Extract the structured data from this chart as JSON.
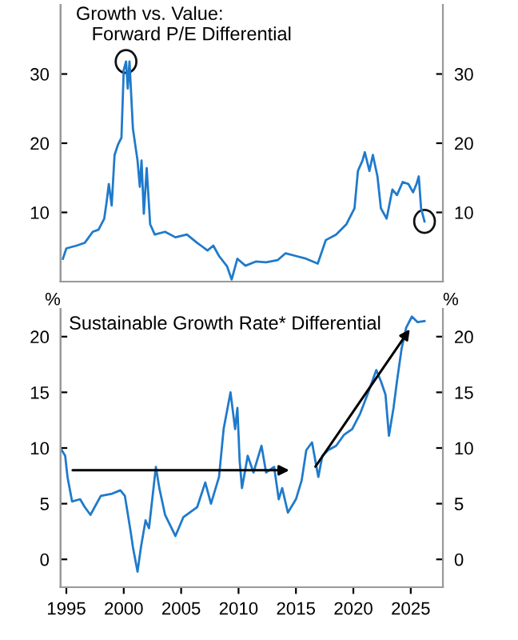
{
  "chart_data": [
    {
      "type": "line",
      "title": "Growth vs. Value:\n   Forward P/E Differential",
      "xlim": [
        1994.5,
        2027.8
      ],
      "ylim": [
        0,
        40
      ],
      "yticks": [
        10,
        20,
        30
      ],
      "y2lim": [
        0,
        40
      ],
      "y2ticks": [
        10,
        20,
        30
      ],
      "tick_labels": "y",
      "grid": false,
      "legend": false,
      "series": [
        {
          "color": "#1f7acb",
          "x": [
            1994.7,
            1995.0,
            1995.9,
            1996.6,
            1997.3,
            1997.8,
            1998.3,
            1998.5,
            1998.7,
            1998.95,
            1999.2,
            1999.5,
            1999.8,
            2000.0,
            2000.2,
            2000.35,
            2000.5,
            2000.8,
            2001.2,
            2001.4,
            2001.55,
            2001.75,
            2002.0,
            2002.3,
            2002.7,
            2003.6,
            2004.5,
            2005.5,
            2006.4,
            2007.3,
            2007.8,
            2008.3,
            2009.0,
            2009.4,
            2009.9,
            2010.6,
            2011.5,
            2012.4,
            2013.4,
            2014.1,
            2015.0,
            2015.9,
            2016.9,
            2017.6,
            2018.5,
            2019.4,
            2020.1,
            2020.4,
            2020.8,
            2021.0,
            2021.4,
            2021.7,
            2022.1,
            2022.4,
            2022.9,
            2023.4,
            2023.8,
            2024.3,
            2024.8,
            2025.2,
            2025.5,
            2025.7,
            2025.9,
            2026.2
          ],
          "values": [
            3.3,
            4.8,
            5.2,
            5.6,
            7.2,
            7.5,
            9.1,
            11.4,
            14.1,
            11.0,
            18.3,
            19.8,
            20.8,
            30.6,
            31.8,
            27.9,
            31.8,
            22.1,
            17.5,
            13.7,
            17.5,
            9.8,
            16.4,
            8.3,
            6.8,
            7.2,
            6.4,
            6.8,
            5.6,
            4.5,
            5.2,
            3.7,
            2.2,
            0.3,
            3.3,
            2.3,
            2.9,
            2.8,
            3.1,
            4.1,
            3.7,
            3.3,
            2.6,
            6.0,
            6.8,
            8.3,
            10.6,
            16.0,
            17.5,
            18.7,
            16.0,
            18.3,
            15.2,
            10.6,
            9.1,
            13.3,
            12.5,
            14.4,
            14.1,
            12.9,
            14.1,
            15.2,
            10.6,
            8.7
          ]
        }
      ]
    },
    {
      "type": "line",
      "title": "Sustainable Growth Rate* Differential",
      "ylabel": "%",
      "y2label": "%",
      "xlim": [
        1994.5,
        2027.8
      ],
      "xticks": [
        1995,
        2000,
        2005,
        2010,
        2015,
        2020,
        2025
      ],
      "ylim": [
        -2.5,
        22.5
      ],
      "yticks": [
        0,
        5,
        10,
        15,
        20
      ],
      "y2lim": [
        -2.5,
        22.5
      ],
      "y2ticks": [
        0,
        5,
        10,
        15,
        20
      ],
      "grid": false,
      "legend": false,
      "series": [
        {
          "color": "#1f7acb",
          "x": [
            1994.6,
            1994.9,
            1995.1,
            1995.5,
            1996.2,
            1996.6,
            1997.1,
            1998.0,
            1999.0,
            1999.7,
            2000.1,
            2000.6,
            2000.8,
            2001.2,
            2001.5,
            2001.9,
            2002.2,
            2002.8,
            2003.1,
            2003.6,
            2004.5,
            2005.2,
            2006.4,
            2007.1,
            2007.6,
            2008.3,
            2008.7,
            2009.3,
            2009.7,
            2009.9,
            2010.1,
            2010.3,
            2010.8,
            2011.3,
            2012.0,
            2012.4,
            2013.1,
            2013.5,
            2013.8,
            2014.3,
            2015.0,
            2015.5,
            2015.9,
            2016.4,
            2016.95,
            2017.3,
            2017.8,
            2018.5,
            2019.2,
            2019.9,
            2020.6,
            2021.3,
            2022.0,
            2022.4,
            2022.8,
            2023.1,
            2023.5,
            2023.8,
            2024.2,
            2024.6,
            2025.1,
            2025.6,
            2026.2
          ],
          "values": [
            9.8,
            9.3,
            7.4,
            5.2,
            5.4,
            4.7,
            4.0,
            5.7,
            5.9,
            6.2,
            5.7,
            2.5,
            1.1,
            -1.1,
            1.1,
            3.5,
            2.8,
            8.3,
            6.4,
            4.0,
            2.1,
            3.8,
            4.7,
            6.9,
            5.0,
            7.4,
            11.7,
            15.0,
            11.7,
            13.6,
            8.8,
            6.4,
            9.3,
            7.8,
            10.2,
            7.8,
            8.3,
            5.4,
            6.4,
            4.2,
            5.4,
            7.1,
            9.8,
            10.5,
            7.4,
            9.3,
            9.8,
            10.2,
            11.2,
            11.7,
            13.1,
            15.0,
            17.0,
            16.0,
            14.8,
            11.1,
            13.6,
            16.0,
            18.9,
            20.8,
            21.8,
            21.3,
            21.4
          ]
        }
      ]
    }
  ]
}
